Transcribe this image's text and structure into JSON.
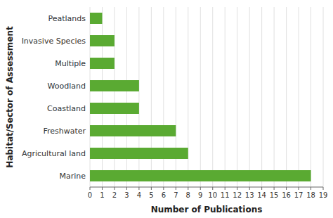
{
  "chart_data": {
    "type": "bar",
    "orientation": "horizontal",
    "categories": [
      "Marine",
      "Agricultural land",
      "Freshwater",
      "Coastland",
      "Woodland",
      "Multiple",
      "Invasive Species",
      "Peatlands"
    ],
    "values": [
      18,
      8,
      7,
      4,
      4,
      2,
      2,
      1
    ],
    "color": "#5aaa32",
    "xlabel": "Number of Publications",
    "ylabel": "Habitat/Sector of Assessment",
    "xlim": [
      0,
      19
    ],
    "xticks": [
      0,
      1,
      2,
      3,
      4,
      5,
      6,
      7,
      8,
      9,
      10,
      11,
      12,
      13,
      14,
      15,
      16,
      17,
      18,
      19
    ],
    "grid": true
  }
}
